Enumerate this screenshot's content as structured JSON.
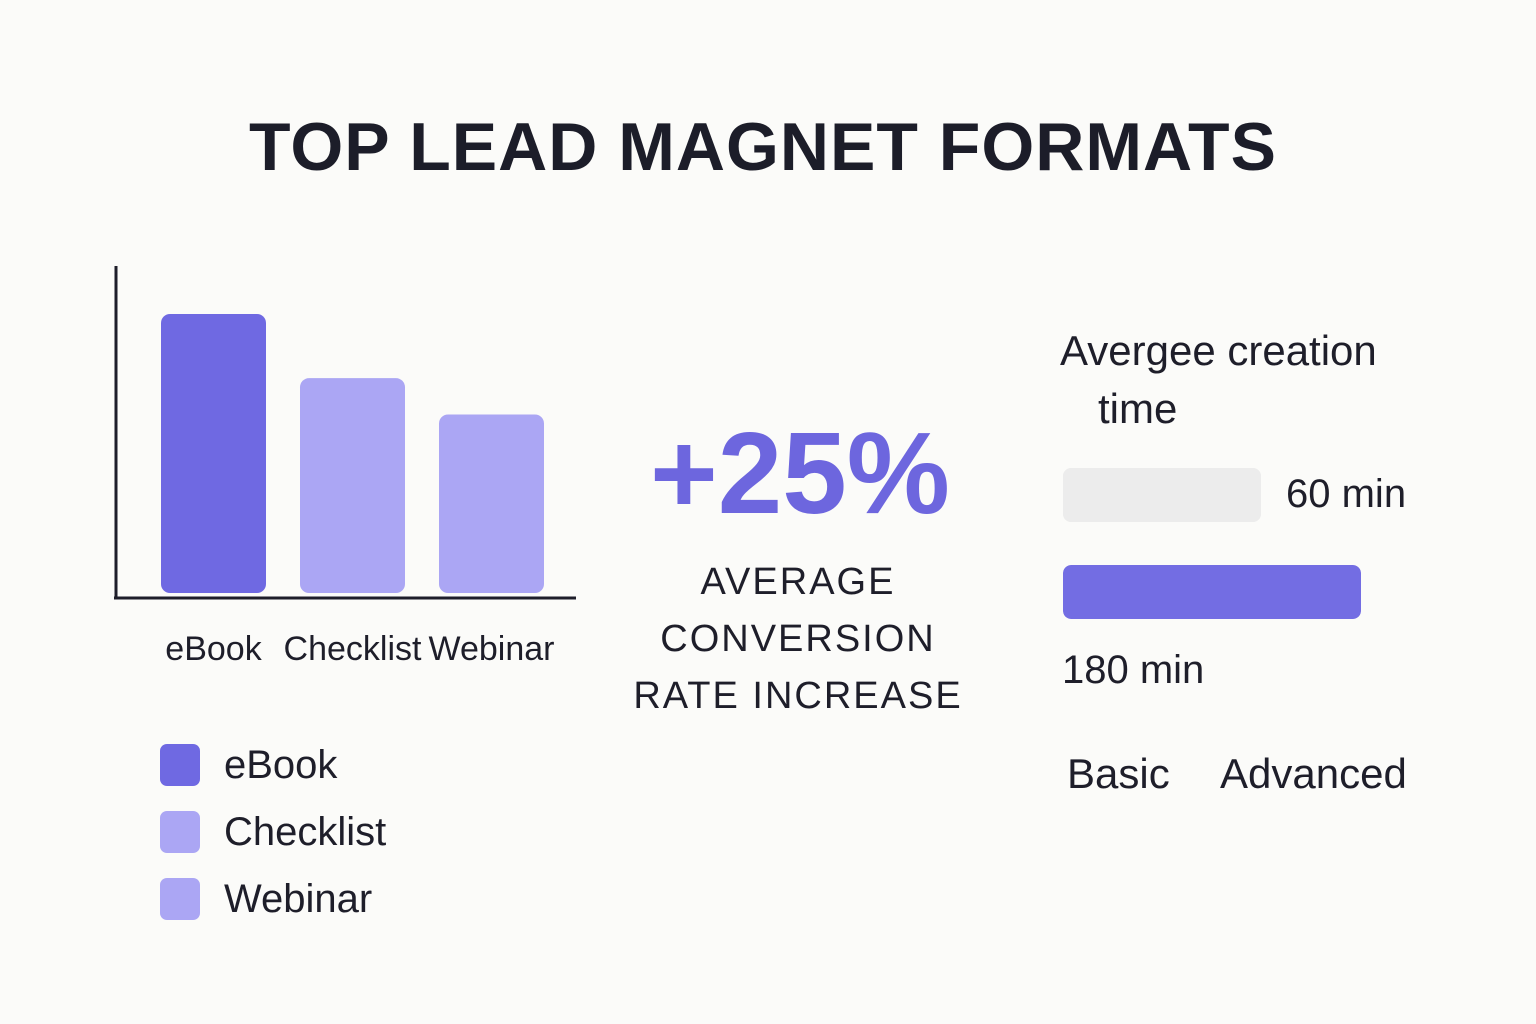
{
  "title": "TOP LEAD MAGNET FORMATS",
  "chart_data": {
    "type": "bar",
    "categories": [
      "eBook",
      "Checklist",
      "Webinar"
    ],
    "values": [
      100,
      77,
      64
    ],
    "colors": [
      "#6f69e2",
      "#aba6f4",
      "#aba6f4"
    ],
    "ylim": [
      0,
      100
    ],
    "grid": false,
    "legend": {
      "position": "bottom-left",
      "items": [
        {
          "label": "eBook",
          "color": "#6f69e2"
        },
        {
          "label": "Checklist",
          "color": "#aba6f4"
        },
        {
          "label": "Webinar",
          "color": "#aba6f4"
        }
      ]
    }
  },
  "stat": {
    "value": "+25%",
    "caption_line1": "AVERAGE",
    "caption_line2": "CONVERSION",
    "caption_line3": "RATE INCREASE",
    "color": "#6d66de"
  },
  "creation_time": {
    "heading_line1": "Avergee creation",
    "heading_line2": "time",
    "bars": [
      {
        "label": "Basic",
        "value_text": "60 min",
        "minutes": 60,
        "color": "#ececec"
      },
      {
        "label": "Advanced",
        "value_text": "180 min",
        "minutes": 180,
        "color": "#736de3"
      }
    ]
  }
}
